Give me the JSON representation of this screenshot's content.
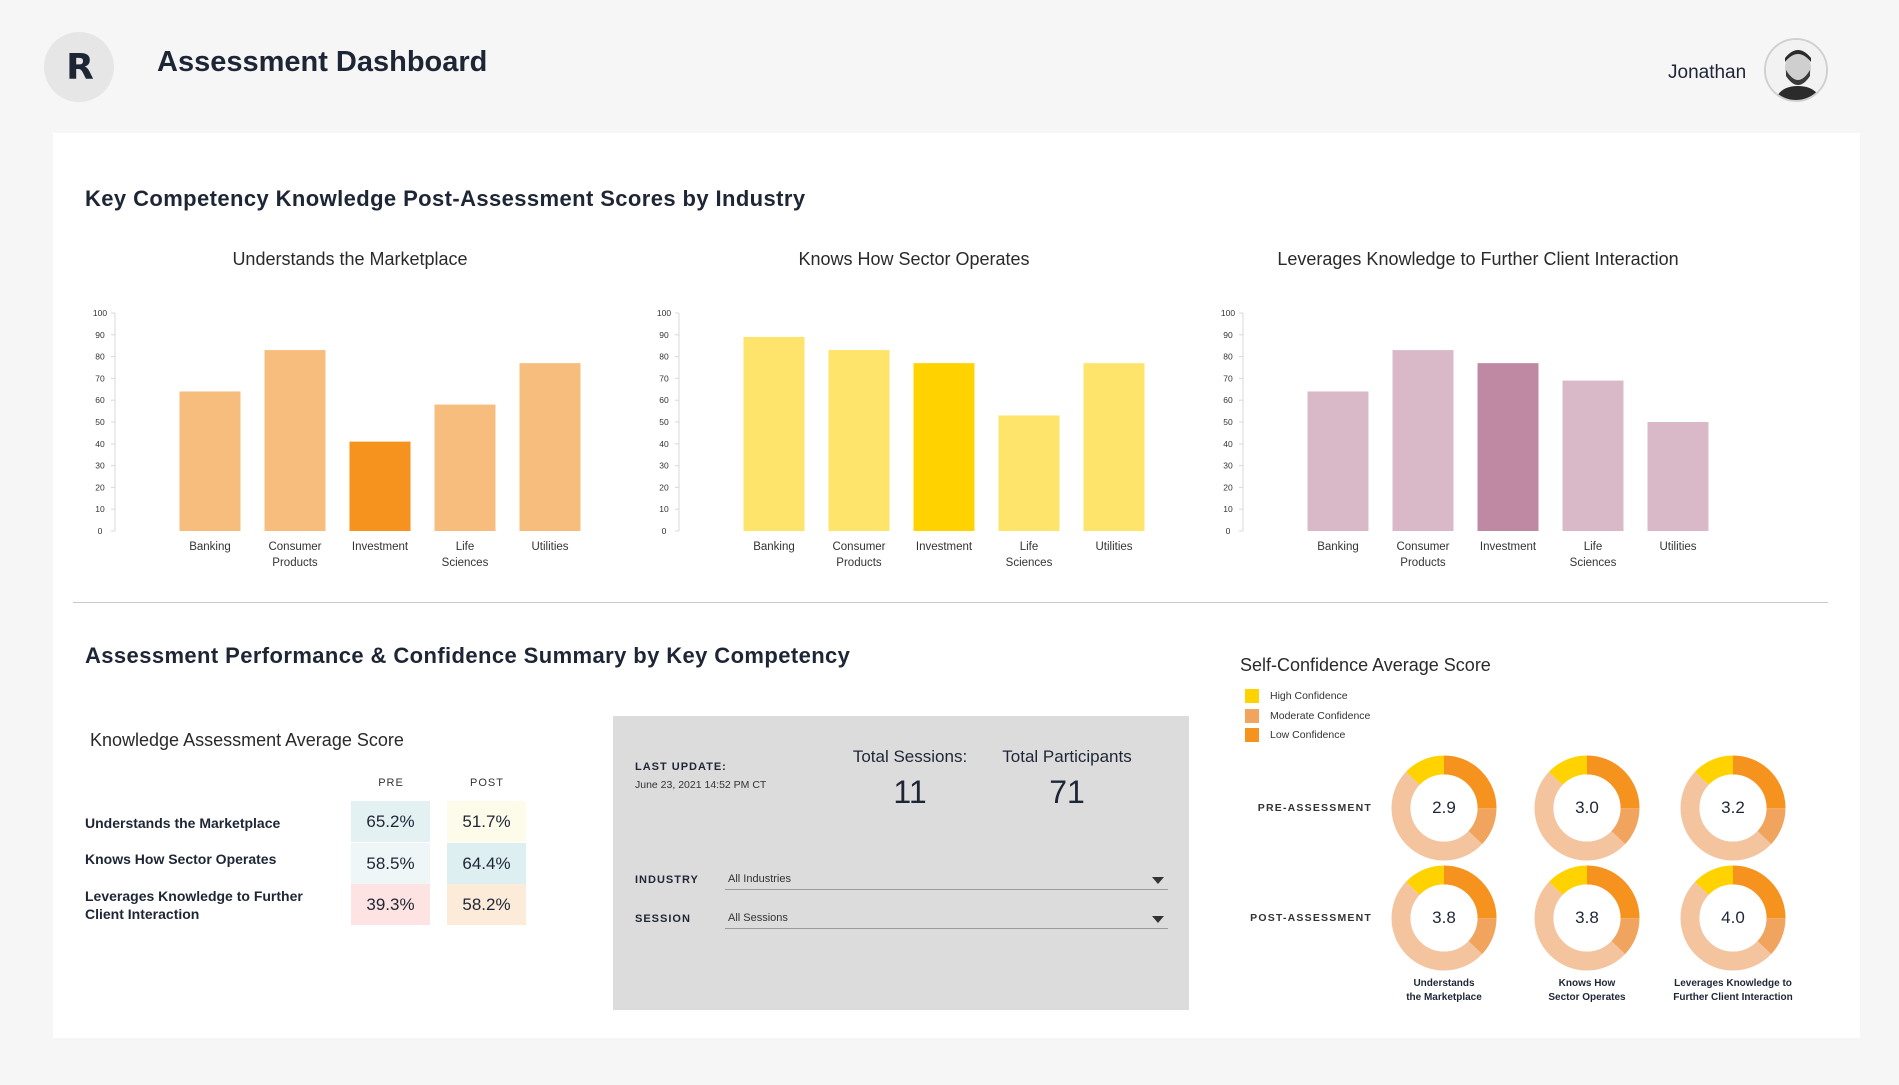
{
  "header": {
    "logo_letter": "R",
    "title": "Assessment Dashboard",
    "user_name": "Jonathan"
  },
  "top_section": {
    "title": "Key Competency Knowledge Post-Assessment Scores by Industry"
  },
  "chart_data": [
    {
      "type": "bar",
      "title": "Understands the Marketplace",
      "categories": [
        "Banking",
        "Consumer Products",
        "Investment",
        "Life Sciences",
        "Utilities"
      ],
      "category_lines": [
        [
          "Banking"
        ],
        [
          "Consumer",
          "Products"
        ],
        [
          "Investment"
        ],
        [
          "Life",
          "Sciences"
        ],
        [
          "Utilities"
        ]
      ],
      "values": [
        64,
        83,
        41,
        58,
        77
      ],
      "ylim": [
        0,
        100
      ],
      "yticks": [
        0,
        10,
        20,
        30,
        40,
        50,
        60,
        70,
        80,
        90,
        100
      ],
      "colors": {
        "default": "#f7bd7d",
        "highlight": "#f6921e"
      },
      "highlight_index": 2
    },
    {
      "type": "bar",
      "title": "Knows How Sector Operates",
      "categories": [
        "Banking",
        "Consumer Products",
        "Investment",
        "Life Sciences",
        "Utilities"
      ],
      "category_lines": [
        [
          "Banking"
        ],
        [
          "Consumer",
          "Products"
        ],
        [
          "Investment"
        ],
        [
          "Life",
          "Sciences"
        ],
        [
          "Utilities"
        ]
      ],
      "values": [
        89,
        83,
        77,
        53,
        77
      ],
      "ylim": [
        0,
        100
      ],
      "yticks": [
        0,
        10,
        20,
        30,
        40,
        50,
        60,
        70,
        80,
        90,
        100
      ],
      "colors": {
        "default": "#fee46b",
        "highlight": "#ffd200"
      },
      "highlight_index": 2
    },
    {
      "type": "bar",
      "title": "Leverages Knowledge to Further Client Interaction",
      "categories": [
        "Banking",
        "Consumer Products",
        "Investment",
        "Life Sciences",
        "Utilities"
      ],
      "category_lines": [
        [
          "Banking"
        ],
        [
          "Consumer",
          "Products"
        ],
        [
          "Investment"
        ],
        [
          "Life",
          "Sciences"
        ],
        [
          "Utilities"
        ]
      ],
      "values": [
        64,
        83,
        77,
        69,
        50
      ],
      "ylim": [
        0,
        100
      ],
      "yticks": [
        0,
        10,
        20,
        30,
        40,
        50,
        60,
        70,
        80,
        90,
        100
      ],
      "colors": {
        "default": "#d9b9c8",
        "highlight": "#bf89a3"
      },
      "highlight_index": 2
    }
  ],
  "bottom_section": {
    "title": "Assessment Performance & Confidence Summary by Key Competency"
  },
  "knowledge_table": {
    "title": "Knowledge Assessment Average Score",
    "columns": [
      "PRE",
      "POST"
    ],
    "rows": [
      {
        "label": "Understands the Marketplace",
        "pre": "65.2%",
        "post": "51.7%",
        "pre_color": "#e3f1f3",
        "post_color": "#fdfbe9"
      },
      {
        "label": "Knows How Sector Operates",
        "pre": "58.5%",
        "post": "64.4%",
        "pre_color": "#eef6f7",
        "post_color": "#ddeff0"
      },
      {
        "label": "Leverages Knowledge to Further Client Interaction",
        "pre": "39.3%",
        "post": "58.2%",
        "pre_color": "#fde3e1",
        "post_color": "#fdebd9"
      }
    ]
  },
  "stats": {
    "last_update_label": "LAST UPDATE:",
    "last_update_value": "June 23, 2021 14:52 PM CT",
    "total_sessions_label": "Total Sessions:",
    "total_sessions_value": "11",
    "total_participants_label": "Total Participants",
    "total_participants_value": "71",
    "industry_label": "INDUSTRY",
    "industry_value": "All Industries",
    "session_label": "SESSION",
    "session_value": "All Sessions"
  },
  "confidence": {
    "title": "Self-Confidence Average Score",
    "legend": [
      {
        "label": "High Confidence",
        "color": "#ffd200"
      },
      {
        "label": "Moderate Confidence",
        "color": "#f0a45d"
      },
      {
        "label": "Low Confidence",
        "color": "#f6921e"
      }
    ],
    "row_labels": [
      "PRE-ASSESSMENT",
      "POST-ASSESSMENT"
    ],
    "column_labels": [
      [
        "Understands",
        "the Marketplace"
      ],
      [
        "Knows How",
        "Sector Operates"
      ],
      [
        "Leverages Knowledge to",
        "Further Client Interaction"
      ]
    ],
    "pre_scores": [
      "2.9",
      "3.0",
      "3.2"
    ],
    "post_scores": [
      "3.8",
      "3.8",
      "4.0"
    ],
    "ring_colors": {
      "high": "#ffd200",
      "moderate": "#f0a45d",
      "low": "#f6921e",
      "rest": "#f3c49e"
    }
  }
}
